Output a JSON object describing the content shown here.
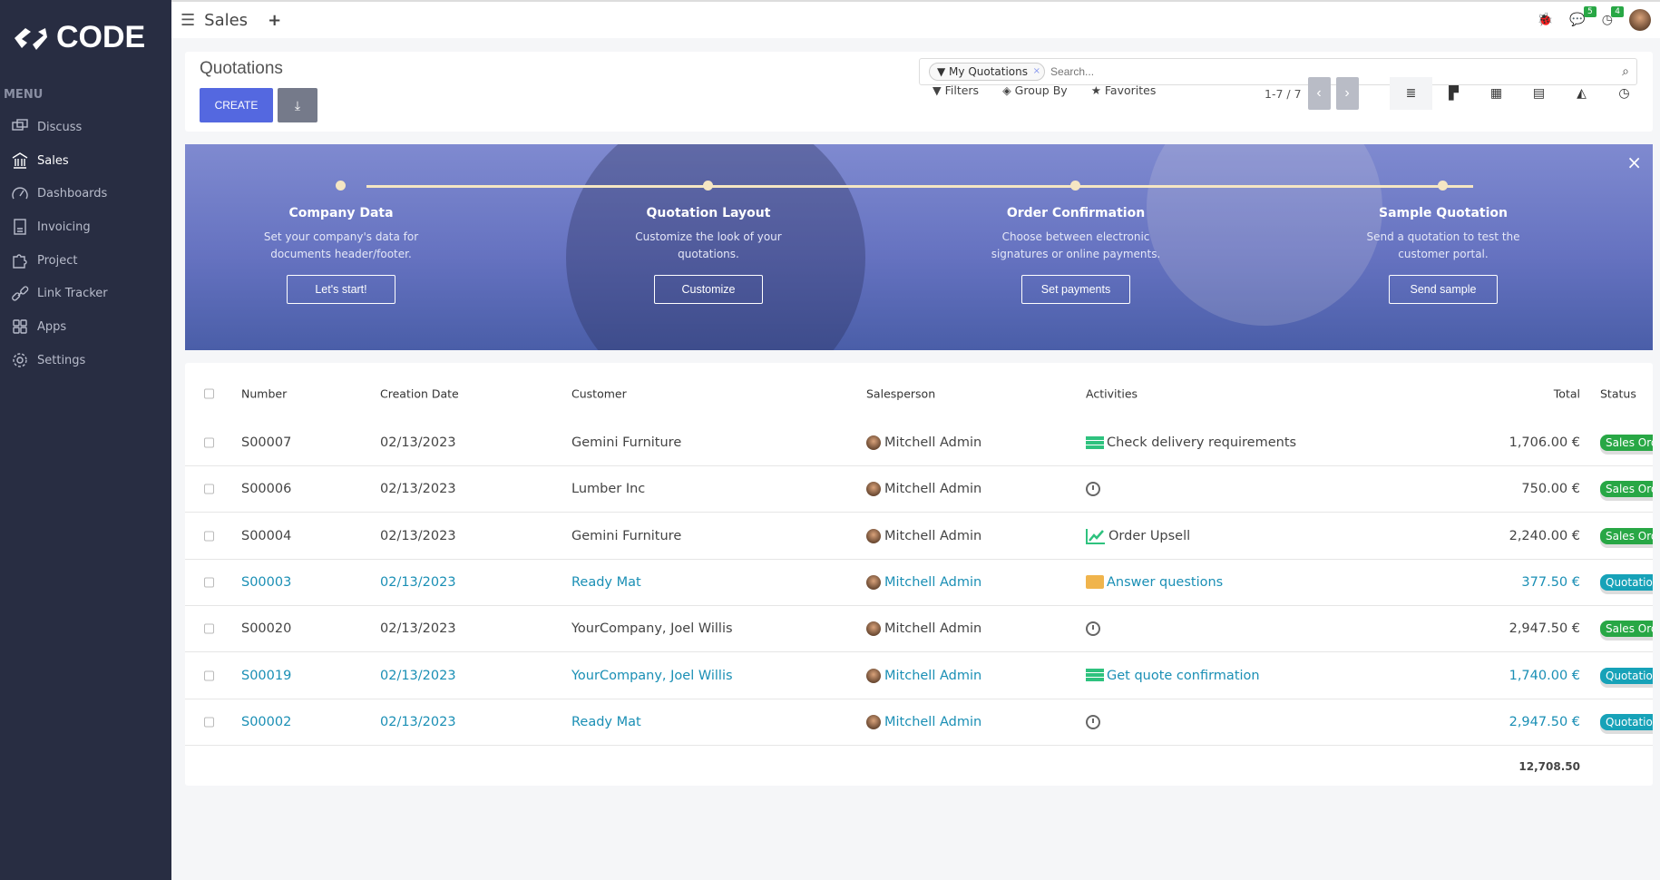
{
  "brand": {
    "name": "CODE"
  },
  "sidebar": {
    "menu_label": "MENU",
    "items": [
      {
        "label": "Discuss",
        "icon": "chat-icon"
      },
      {
        "label": "Sales",
        "icon": "bank-icon",
        "active": true
      },
      {
        "label": "Dashboards",
        "icon": "gauge-icon"
      },
      {
        "label": "Invoicing",
        "icon": "invoice-icon"
      },
      {
        "label": "Project",
        "icon": "puzzle-icon"
      },
      {
        "label": "Link Tracker",
        "icon": "link-icon"
      },
      {
        "label": "Apps",
        "icon": "apps-icon"
      },
      {
        "label": "Settings",
        "icon": "gear-icon"
      }
    ]
  },
  "topbar": {
    "app": "Sales",
    "messages_count": "5",
    "activities_count": "4"
  },
  "control": {
    "title": "Quotations",
    "create": "CREATE",
    "facet": "My Quotations",
    "search_placeholder": "Search...",
    "filters": "Filters",
    "group_by": "Group By",
    "favorites": "Favorites",
    "pager": "1-7 / 7"
  },
  "banner": {
    "steps": [
      {
        "title": "Company Data",
        "text": "Set your company's data for documents header/footer.",
        "button": "Let's start!"
      },
      {
        "title": "Quotation Layout",
        "text": "Customize the look of your quotations.",
        "button": "Customize"
      },
      {
        "title": "Order Confirmation",
        "text": "Choose between electronic signatures or online payments.",
        "button": "Set payments"
      },
      {
        "title": "Sample Quotation",
        "text": "Send a quotation to test the customer portal.",
        "button": "Send sample"
      }
    ]
  },
  "table": {
    "columns": [
      "Number",
      "Creation Date",
      "Customer",
      "Salesperson",
      "Activities",
      "Total",
      "Status"
    ],
    "rows": [
      {
        "number": "S00007",
        "date": "02/13/2023",
        "customer": "Gemini Furniture",
        "salesperson": "Mitchell Admin",
        "activity": "Check delivery requirements",
        "activity_icon": "todo-icon",
        "total": "1,706.00 €",
        "status": "Sales Order",
        "link": false
      },
      {
        "number": "S00006",
        "date": "02/13/2023",
        "customer": "Lumber Inc",
        "salesperson": "Mitchell Admin",
        "activity": "",
        "activity_icon": "clock-icon",
        "total": "750.00 €",
        "status": "Sales Order",
        "link": false
      },
      {
        "number": "S00004",
        "date": "02/13/2023",
        "customer": "Gemini Furniture",
        "salesperson": "Mitchell Admin",
        "activity": "Order Upsell",
        "activity_icon": "upsell-chart-icon",
        "total": "2,240.00 €",
        "status": "Sales Order",
        "link": false
      },
      {
        "number": "S00003",
        "date": "02/13/2023",
        "customer": "Ready Mat",
        "salesperson": "Mitchell Admin",
        "activity": "Answer questions",
        "activity_icon": "envelope-icon",
        "total": "377.50 €",
        "status": "Quotation",
        "link": true
      },
      {
        "number": "S00020",
        "date": "02/13/2023",
        "customer": "YourCompany, Joel Willis",
        "salesperson": "Mitchell Admin",
        "activity": "",
        "activity_icon": "clock-icon",
        "total": "2,947.50 €",
        "status": "Sales Order",
        "link": false
      },
      {
        "number": "S00019",
        "date": "02/13/2023",
        "customer": "YourCompany, Joel Willis",
        "salesperson": "Mitchell Admin",
        "activity": "Get quote confirmation",
        "activity_icon": "todo-icon",
        "total": "1,740.00 €",
        "status": "Quotation",
        "link": true
      },
      {
        "number": "S00002",
        "date": "02/13/2023",
        "customer": "Ready Mat",
        "salesperson": "Mitchell Admin",
        "activity": "",
        "activity_icon": "clock-icon",
        "total": "2,947.50 €",
        "status": "Quotation",
        "link": true
      }
    ],
    "sum_total": "12,708.50"
  },
  "colors": {
    "sidebar": "#282d42",
    "primary": "#5468e0",
    "sales_order": "#28a745",
    "quotation": "#17a2b8",
    "link": "#1a8fb5"
  }
}
